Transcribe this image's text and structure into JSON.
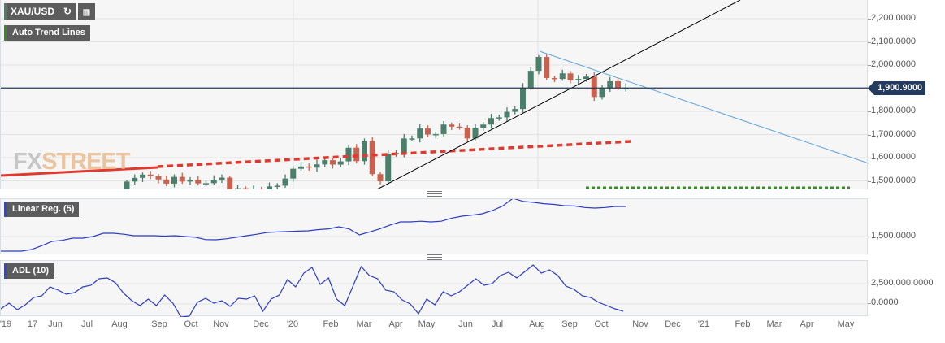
{
  "toolbar": {
    "symbol": "XAU/USD",
    "refresh_icon": "refresh-icon",
    "bars_icon": "chart-bars-icon"
  },
  "indicators": {
    "main": "Auto Trend Lines",
    "lin": "Linear Reg. (5)",
    "adl": "ADL (10)"
  },
  "watermark": {
    "a": "FX",
    "b": "STREET"
  },
  "price_axis": [
    "2,200.0000",
    "2,100.0000",
    "2,000.0000",
    "1,800.0000",
    "1,700.0000",
    "1,600.0000",
    "1,500.0000"
  ],
  "price_ticks": [
    2200,
    2100,
    2000,
    1800,
    1700,
    1600,
    1500
  ],
  "last_price": "1,900.9000",
  "last_value": 1900.9,
  "lin_axis": "1,500.0000",
  "adl_axis": [
    "2,500,000.0000",
    "0.0000"
  ],
  "time_axis": [
    "'19",
    "17",
    "Jun",
    "Jul",
    "Aug",
    "Sep",
    "Oct",
    "Nov",
    "Dec",
    "'20",
    "Feb",
    "Mar",
    "Apr",
    "May",
    "Jun",
    "Jul",
    "Aug",
    "Sep",
    "Oct",
    "Nov",
    "Dec",
    "'21",
    "Feb",
    "Mar",
    "Apr",
    "May"
  ],
  "colors": {
    "up": "#4a7f6b",
    "down": "#c8614e",
    "trend": "#000000",
    "resist": "#5aa3e0",
    "support": "#e03a2f",
    "ind": "#2b3cc4",
    "last": "#243a5e",
    "green_dash": "#3a8a2a"
  },
  "chart_data": {
    "type": "candlestick",
    "interval": "weekly",
    "first_week": "2019-08-05",
    "closes": [
      1497,
      1513,
      1527,
      1520,
      1506,
      1488,
      1517,
      1497,
      1504,
      1489,
      1490,
      1504,
      1514,
      1459,
      1468,
      1462,
      1464,
      1459,
      1476,
      1479,
      1510,
      1552,
      1562,
      1557,
      1571,
      1589,
      1570,
      1584,
      1643,
      1585,
      1673,
      1529,
      1498,
      1617,
      1620,
      1683,
      1683,
      1726,
      1700,
      1702,
      1743,
      1734,
      1730,
      1683,
      1729,
      1743,
      1771,
      1774,
      1798,
      1810,
      1902,
      1975,
      2035,
      1944,
      1940,
      1964,
      1934,
      1940,
      1950,
      1862,
      1900,
      1930,
      1900,
      1901
    ],
    "first_open": 1440,
    "lin_reg": [
      1309,
      1309,
      1309,
      1330,
      1380,
      1436,
      1450,
      1479,
      1479,
      1500,
      1543,
      1543,
      1530,
      1511,
      1511,
      1511,
      1505,
      1511,
      1500,
      1490,
      1460,
      1457,
      1470,
      1490,
      1511,
      1530,
      1553,
      1560,
      1565,
      1570,
      1574,
      1590,
      1600,
      1628,
      1600,
      1521,
      1560,
      1600,
      1650,
      1691,
      1691,
      1700,
      1691,
      1700,
      1740,
      1766,
      1780,
      1798,
      1840,
      1900,
      2000,
      1960,
      1947,
      1930,
      1920,
      1904,
      1900,
      1880,
      1872,
      1880,
      1894,
      1894
    ],
    "adl_millions": [
      -0.6,
      0.1,
      -0.7,
      -0.1,
      0.8,
      1.0,
      2.1,
      1.7,
      1.2,
      1.4,
      2.1,
      2.3,
      3.1,
      3.2,
      2.6,
      1.3,
      0.4,
      -0.2,
      0.6,
      -0.2,
      1.1,
      0.1,
      -1.6,
      -1.5,
      0.2,
      0.7,
      0.1,
      0.4,
      -0.3,
      0.7,
      0.6,
      1.0,
      -0.9,
      0.6,
      1.1,
      3.0,
      2.1,
      3.8,
      4.5,
      2.4,
      3.2,
      0.6,
      -0.2,
      2.2,
      4.6,
      3.5,
      3.1,
      1.7,
      1.5,
      0.5,
      0.0,
      -1.2,
      0.6,
      -0.1,
      1.5,
      1.0,
      1.5,
      2.3,
      3.1,
      2.3,
      2.5,
      3.5,
      3.9,
      3.2,
      4.0,
      4.8,
      3.8,
      4.2,
      3.5,
      2.2,
      1.8,
      1.0,
      0.8,
      0.2,
      -0.2,
      -0.6,
      -0.9
    ],
    "axis_labels": {
      "price": "XAU/USD"
    }
  }
}
